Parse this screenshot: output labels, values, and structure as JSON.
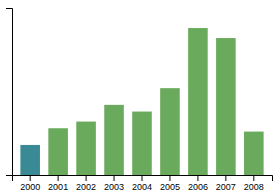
{
  "chart_data": {
    "type": "bar",
    "categories": [
      "2000",
      "2001",
      "2002",
      "2003",
      "2004",
      "2005",
      "2006",
      "2007",
      "2008"
    ],
    "values": [
      18,
      28,
      32,
      42,
      38,
      52,
      88,
      82,
      26
    ],
    "colors": [
      "#3a8a96",
      "#6aaa5c",
      "#6aaa5c",
      "#6aaa5c",
      "#6aaa5c",
      "#6aaa5c",
      "#6aaa5c",
      "#6aaa5c",
      "#6aaa5c"
    ],
    "ylim": [
      0,
      100
    ],
    "yticks": [],
    "grid": false,
    "tick_labels": "x"
  }
}
